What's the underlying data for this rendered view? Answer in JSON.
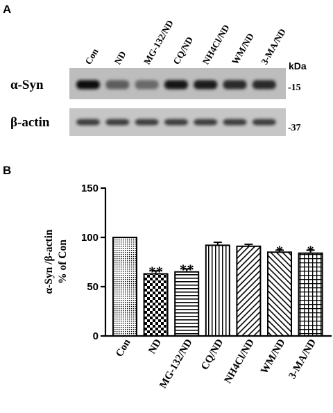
{
  "panels": {
    "a": "A",
    "b": "B"
  },
  "blot": {
    "lanes": [
      "Con",
      "ND",
      "MG-132/ND",
      "CQ/ND",
      "NH4Cl/ND",
      "WM/ND",
      "3-MA/ND"
    ],
    "rows": [
      {
        "label": "α-Syn",
        "marker": "-15",
        "intensity": [
          1.0,
          0.63,
          0.58,
          0.95,
          0.92,
          0.86,
          0.85
        ]
      },
      {
        "label": "β-actin",
        "marker": "-37",
        "intensity": [
          0.78,
          0.78,
          0.78,
          0.78,
          0.78,
          0.78,
          0.78
        ]
      }
    ],
    "units": "kDa"
  },
  "chart_data": {
    "type": "bar",
    "categories": [
      "Con",
      "ND",
      "MG-132/ND",
      "CQ/ND",
      "NH4Cl/ND",
      "WM/ND",
      "3-MA/ND"
    ],
    "values": [
      100,
      63,
      65,
      92,
      91,
      85,
      84
    ],
    "errors": [
      0,
      3,
      3,
      3,
      2,
      2,
      3
    ],
    "significance": [
      "",
      "**",
      "**",
      "",
      "",
      "*",
      "*"
    ],
    "ylabel_line1": "α-Syn /β-actin",
    "ylabel_line2": "% of Con",
    "xlabel": "",
    "ylim": [
      0,
      150
    ],
    "yticks": [
      0,
      50,
      100,
      150
    ],
    "patterns": [
      "dots",
      "checker",
      "hlines",
      "vlines",
      "diag-right",
      "diag-left",
      "grid"
    ],
    "grid": false,
    "legend": "none"
  }
}
